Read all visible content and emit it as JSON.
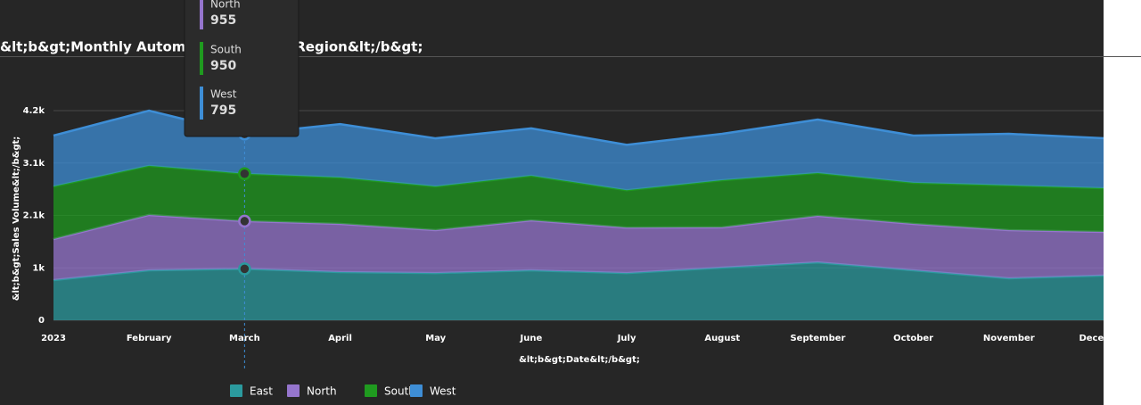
{
  "chart_data": {
    "type": "area",
    "stacked": true,
    "title": "&lt;b&gt;Monthly Automobile Sales by Region&lt;/b&gt;",
    "x_label": "&lt;b&gt;Date&lt;/b&gt;",
    "y_label": "&lt;b&gt;Sales Volume&lt;/b&gt;",
    "categories": [
      "2023",
      "February",
      "March",
      "April",
      "May",
      "June",
      "July",
      "August",
      "September",
      "October",
      "November",
      "December"
    ],
    "series": [
      {
        "name": "East",
        "color": "#2b9a9e",
        "values": [
          805,
          1000,
          1030,
          965,
          945,
          1000,
          945,
          1055,
          1160,
          1000,
          840,
          895
        ]
      },
      {
        "name": "North",
        "color": "#9575cd",
        "values": [
          820,
          1110,
          955,
          965,
          860,
          1000,
          910,
          805,
          930,
          930,
          965,
          875
        ]
      },
      {
        "name": "South",
        "color": "#1f9a1f",
        "values": [
          1055,
          985,
          950,
          930,
          875,
          895,
          750,
          945,
          860,
          825,
          895,
          875
        ]
      },
      {
        "name": "West",
        "color": "#3e8ed6",
        "values": [
          1020,
          1105,
          795,
          1070,
          965,
          950,
          910,
          930,
          1070,
          945,
          1035,
          1000
        ]
      }
    ],
    "ylim": [
      0,
      4200
    ],
    "yticks": [
      0,
      {
        "value": 1050,
        "label": "1k"
      },
      {
        "value": 2100,
        "label": "2.1k"
      },
      {
        "value": 3150,
        "label": "3.1k"
      },
      {
        "value": 4200,
        "label": "4.2k"
      }
    ],
    "grid": true,
    "legend": "bottom"
  }
}
